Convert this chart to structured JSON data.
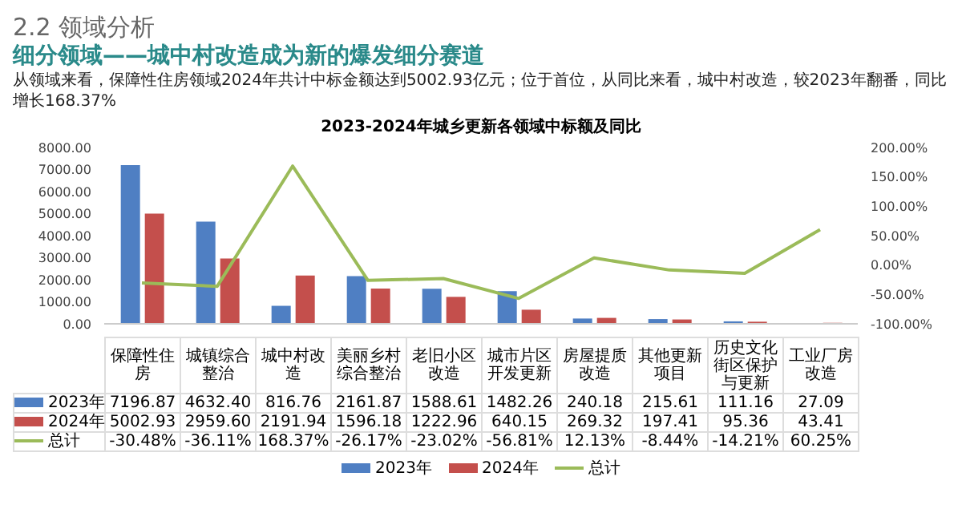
{
  "chart_data": {
    "type": "bar",
    "title": "2023-2024年城乡更新各领域中标额及同比",
    "subtitle": "细分领域——城中村改造成为新的爆发细分赛道",
    "annotations": [
      "2.2 领域分析",
      "从领域来看，保障性住房领域2024年共计中标金额达到5002.93亿元；位于首位，从同比来看，城中村改造，较2023年翻番，同比增长168.37%"
    ],
    "categories": [
      "保障性住房",
      "城镇综合整治",
      "城中村改造",
      "美丽乡村综合整治",
      "老旧小区改造",
      "城市片区开发更新",
      "房屋提质改造",
      "其他更新项目",
      "历史文化街区保护与更新",
      "工业厂房改造"
    ],
    "series": [
      {
        "name": "2023年",
        "color": "#4f7fc3",
        "values": [
          7196.87,
          4632.4,
          816.76,
          2161.87,
          1588.61,
          1482.26,
          240.18,
          215.61,
          111.16,
          27.09
        ],
        "value_labels": [
          "7196.87",
          "4632.40",
          "816.76",
          "2161.87",
          "1588.61",
          "1482.26",
          "240.18",
          "215.61",
          "111.16",
          "27.09"
        ]
      },
      {
        "name": "2024年",
        "color": "#c44f4c",
        "values": [
          5002.93,
          2959.6,
          2191.94,
          1596.18,
          1222.96,
          640.15,
          269.32,
          197.41,
          95.36,
          43.41
        ],
        "value_labels": [
          "5002.93",
          "2959.60",
          "2191.94",
          "1596.18",
          "1222.96",
          "640.15",
          "269.32",
          "197.41",
          "95.36",
          "43.41"
        ]
      },
      {
        "name": "总计",
        "type": "line",
        "axis": "y2",
        "color": "#9bbb59",
        "values": [
          -30.48,
          -36.11,
          168.37,
          -26.17,
          -23.02,
          -56.81,
          12.13,
          -8.44,
          -14.21,
          60.25
        ],
        "value_labels": [
          "-30.48%",
          "-36.11%",
          "168.37%",
          "-26.17%",
          "-23.02%",
          "-56.81%",
          "12.13%",
          "-8.44%",
          "-14.21%",
          "60.25%"
        ]
      }
    ],
    "ylim": [
      0,
      8000
    ],
    "yticks": [
      {
        "value": 0,
        "label": "0.00"
      },
      {
        "value": 1000,
        "label": "1000.00"
      },
      {
        "value": 2000,
        "label": "2000.00"
      },
      {
        "value": 3000,
        "label": "3000.00"
      },
      {
        "value": 4000,
        "label": "4000.00"
      },
      {
        "value": 5000,
        "label": "5000.00"
      },
      {
        "value": 6000,
        "label": "6000.00"
      },
      {
        "value": 7000,
        "label": "7000.00"
      },
      {
        "value": 8000,
        "label": "8000.00"
      }
    ],
    "y2lim": [
      -100,
      200
    ],
    "y2ticks": [
      {
        "value": -100,
        "label": "-100.00%"
      },
      {
        "value": -50,
        "label": "-50.00%"
      },
      {
        "value": 0,
        "label": "0.00%"
      },
      {
        "value": 50,
        "label": "50.00%"
      },
      {
        "value": 100,
        "label": "100.00%"
      },
      {
        "value": 150,
        "label": "150.00%"
      },
      {
        "value": 200,
        "label": "200.00%"
      }
    ],
    "grid": false,
    "legend": "bottom",
    "marker": "none",
    "line_style": "solid",
    "tick_labels": "y"
  }
}
